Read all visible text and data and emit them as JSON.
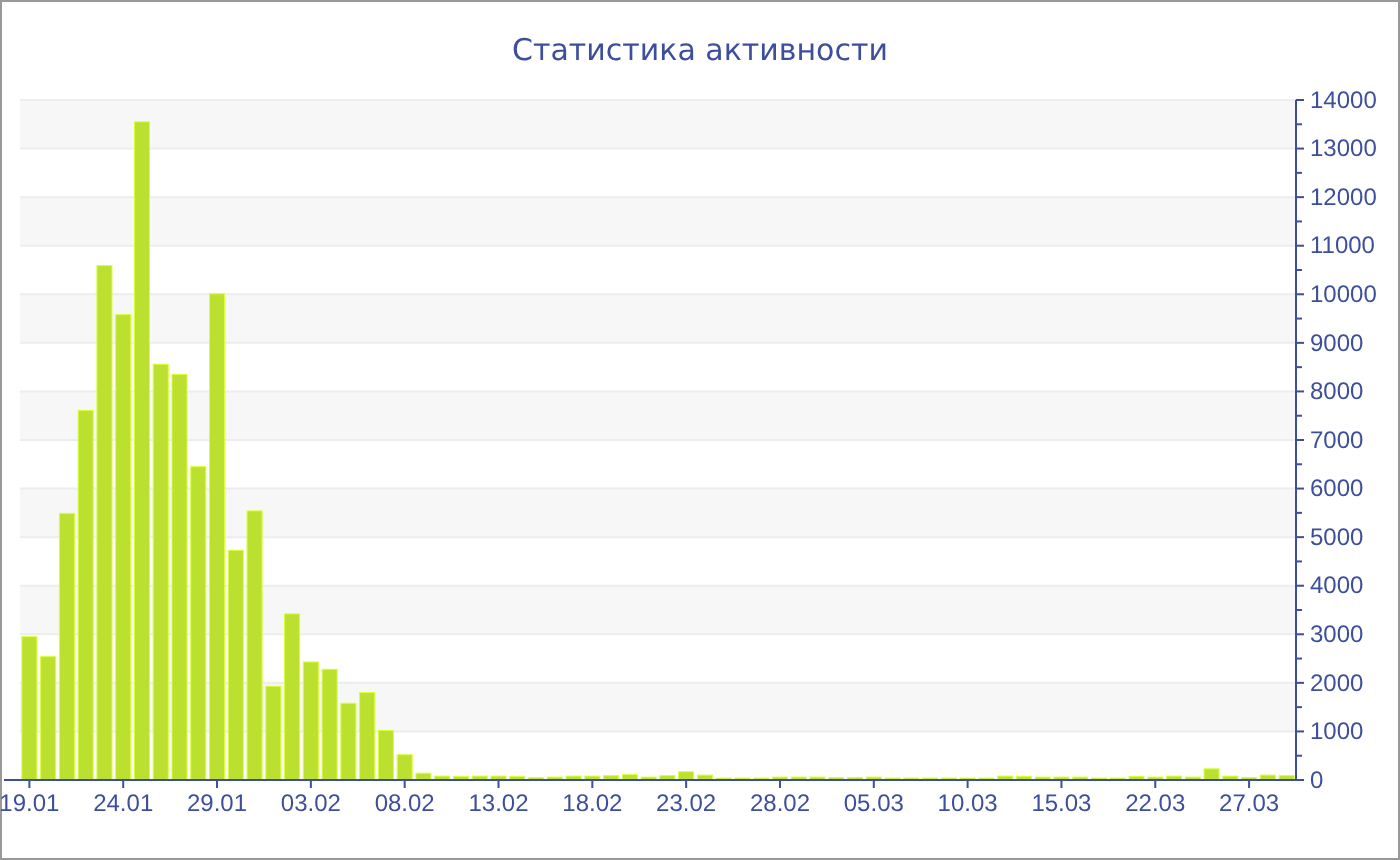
{
  "chart_data": {
    "type": "bar",
    "title": "Статистика активности",
    "categories": [
      "19.01",
      null,
      null,
      null,
      null,
      "24.01",
      null,
      null,
      null,
      null,
      "29.01",
      null,
      null,
      null,
      null,
      "03.02",
      null,
      null,
      null,
      null,
      "08.02",
      null,
      null,
      null,
      null,
      "13.02",
      null,
      null,
      null,
      null,
      "18.02",
      null,
      null,
      null,
      null,
      "23.02",
      null,
      null,
      null,
      null,
      "28.02",
      null,
      null,
      null,
      null,
      "05.03",
      null,
      null,
      null,
      null,
      "10.03",
      null,
      null,
      null,
      null,
      "15.03",
      null,
      null,
      null,
      null,
      "22.03",
      null,
      null,
      null,
      null,
      "27.03",
      null,
      null
    ],
    "values": [
      2950,
      2540,
      5490,
      7610,
      10590,
      9580,
      13550,
      8560,
      8350,
      6450,
      10010,
      4730,
      5540,
      1930,
      3420,
      2430,
      2280,
      1580,
      1800,
      1020,
      520,
      140,
      80,
      70,
      80,
      80,
      70,
      50,
      60,
      80,
      80,
      90,
      110,
      60,
      90,
      170,
      100,
      40,
      40,
      40,
      60,
      60,
      60,
      50,
      50,
      60,
      40,
      40,
      40,
      40,
      40,
      40,
      80,
      70,
      60,
      60,
      60,
      40,
      40,
      70,
      60,
      80,
      60,
      230,
      80,
      50,
      100,
      90
    ],
    "color": "#bbe02f",
    "ylim": [
      0,
      14000
    ],
    "yticks": [
      0,
      1000,
      2000,
      3000,
      4000,
      5000,
      6000,
      7000,
      8000,
      9000,
      10000,
      11000,
      12000,
      13000,
      14000
    ],
    "grid": "y"
  }
}
